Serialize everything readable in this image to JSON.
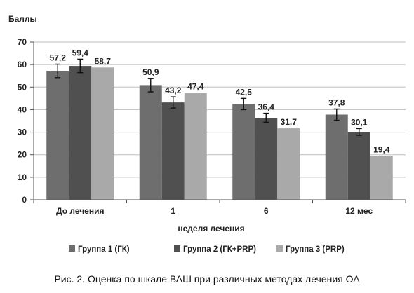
{
  "chart_data": {
    "type": "bar",
    "ylabel": "Баллы",
    "xlabel": "неделя лечения",
    "categories": [
      "До лечения",
      "1",
      "6",
      "12 мес"
    ],
    "series": [
      {
        "name": "Группа 1 (ГК)",
        "values": [
          57.2,
          50.9,
          42.5,
          37.8
        ],
        "labels": [
          "57,2",
          "50,9",
          "42,5",
          "37,8"
        ],
        "errors": [
          3,
          3,
          2.5,
          2.5
        ],
        "color": "#6e6e6e"
      },
      {
        "name": "Группа 2 (ГК+PRP)",
        "values": [
          59.4,
          43.2,
          36.4,
          30.1
        ],
        "labels": [
          "59,4",
          "43,2",
          "36,4",
          "30,1"
        ],
        "errors": [
          3,
          2.5,
          2,
          1.5
        ],
        "color": "#505050"
      },
      {
        "name": "Группа 3 (PRP)",
        "values": [
          58.7,
          47.4,
          31.7,
          19.4
        ],
        "labels": [
          "58,7",
          "47,4",
          "31,7",
          "19,4"
        ],
        "errors": [
          null,
          null,
          null,
          null
        ],
        "color": "#a9a9a9"
      }
    ],
    "ylim": [
      0,
      70
    ],
    "yticks": [
      0,
      10,
      20,
      30,
      40,
      50,
      60,
      70
    ],
    "grid": true,
    "legend_position": "bottom"
  },
  "caption": "Рис. 2. Оценка по шкале ВАШ при различных методах лечения ОА"
}
